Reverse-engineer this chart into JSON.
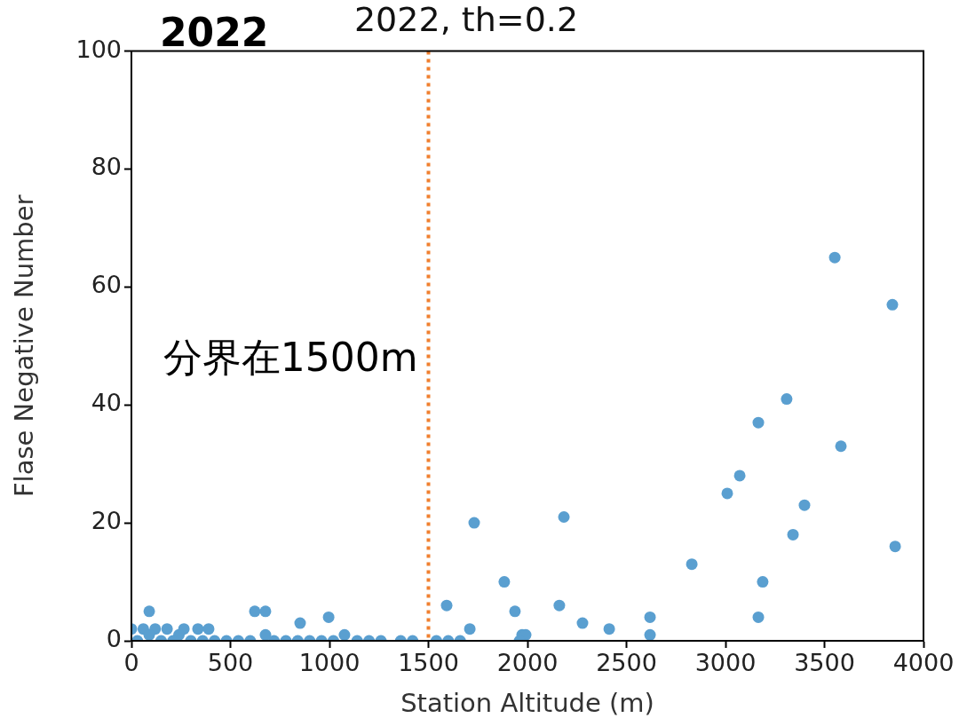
{
  "chart_data": {
    "type": "scatter",
    "title": "2022, th=0.2",
    "xlabel": "Station Altitude (m)",
    "ylabel": "Flase Negative Number",
    "annotations": [
      "2022"
    ],
    "x": [
      3552,
      3843,
      3309,
      3166,
      3072,
      3583,
      3009,
      3399,
      3341,
      3857,
      2830,
      3188,
      3166,
      2619,
      2619,
      1731,
      2184,
      1883,
      1592,
      1937,
      2161,
      2278,
      2413,
      1709,
      1973,
      1991,
      1960,
      1540,
      1600,
      1660,
      90,
      623,
      677,
      852,
      996,
      677,
      1076,
      0,
      60,
      120,
      180,
      265,
      336,
      390,
      90,
      240,
      30,
      150,
      210,
      300,
      360,
      420,
      480,
      540,
      600,
      720,
      780,
      840,
      900,
      960,
      1020,
      1140,
      1200,
      1260,
      1360,
      1420
    ],
    "values": [
      65,
      57,
      41,
      37,
      28,
      33,
      25,
      23,
      18,
      16,
      13,
      10,
      4,
      4,
      1,
      20,
      21,
      10,
      6,
      5,
      6,
      3,
      2,
      2,
      1,
      1,
      0,
      0,
      0,
      0,
      5,
      5,
      5,
      3,
      4,
      1,
      1,
      2,
      2,
      2,
      2,
      2,
      2,
      2,
      1,
      1,
      0,
      0,
      0,
      0,
      0,
      0,
      0,
      0,
      0,
      0,
      0,
      0,
      0,
      0,
      0,
      0,
      0,
      0,
      0,
      0
    ],
    "color": "#5a9fd0",
    "marker": "circle",
    "xlim": [
      0,
      4000
    ],
    "xticks": [
      0,
      500,
      1000,
      1500,
      2000,
      2500,
      3000,
      3500,
      4000
    ],
    "ylim": [
      0,
      100
    ],
    "yticks": [
      0,
      20,
      40,
      60,
      80,
      100
    ],
    "ref_lines": [
      {
        "axis": "x",
        "value": 1500,
        "label": "分界在1500m",
        "color": "#f08030",
        "line_style": "dotted"
      }
    ]
  }
}
